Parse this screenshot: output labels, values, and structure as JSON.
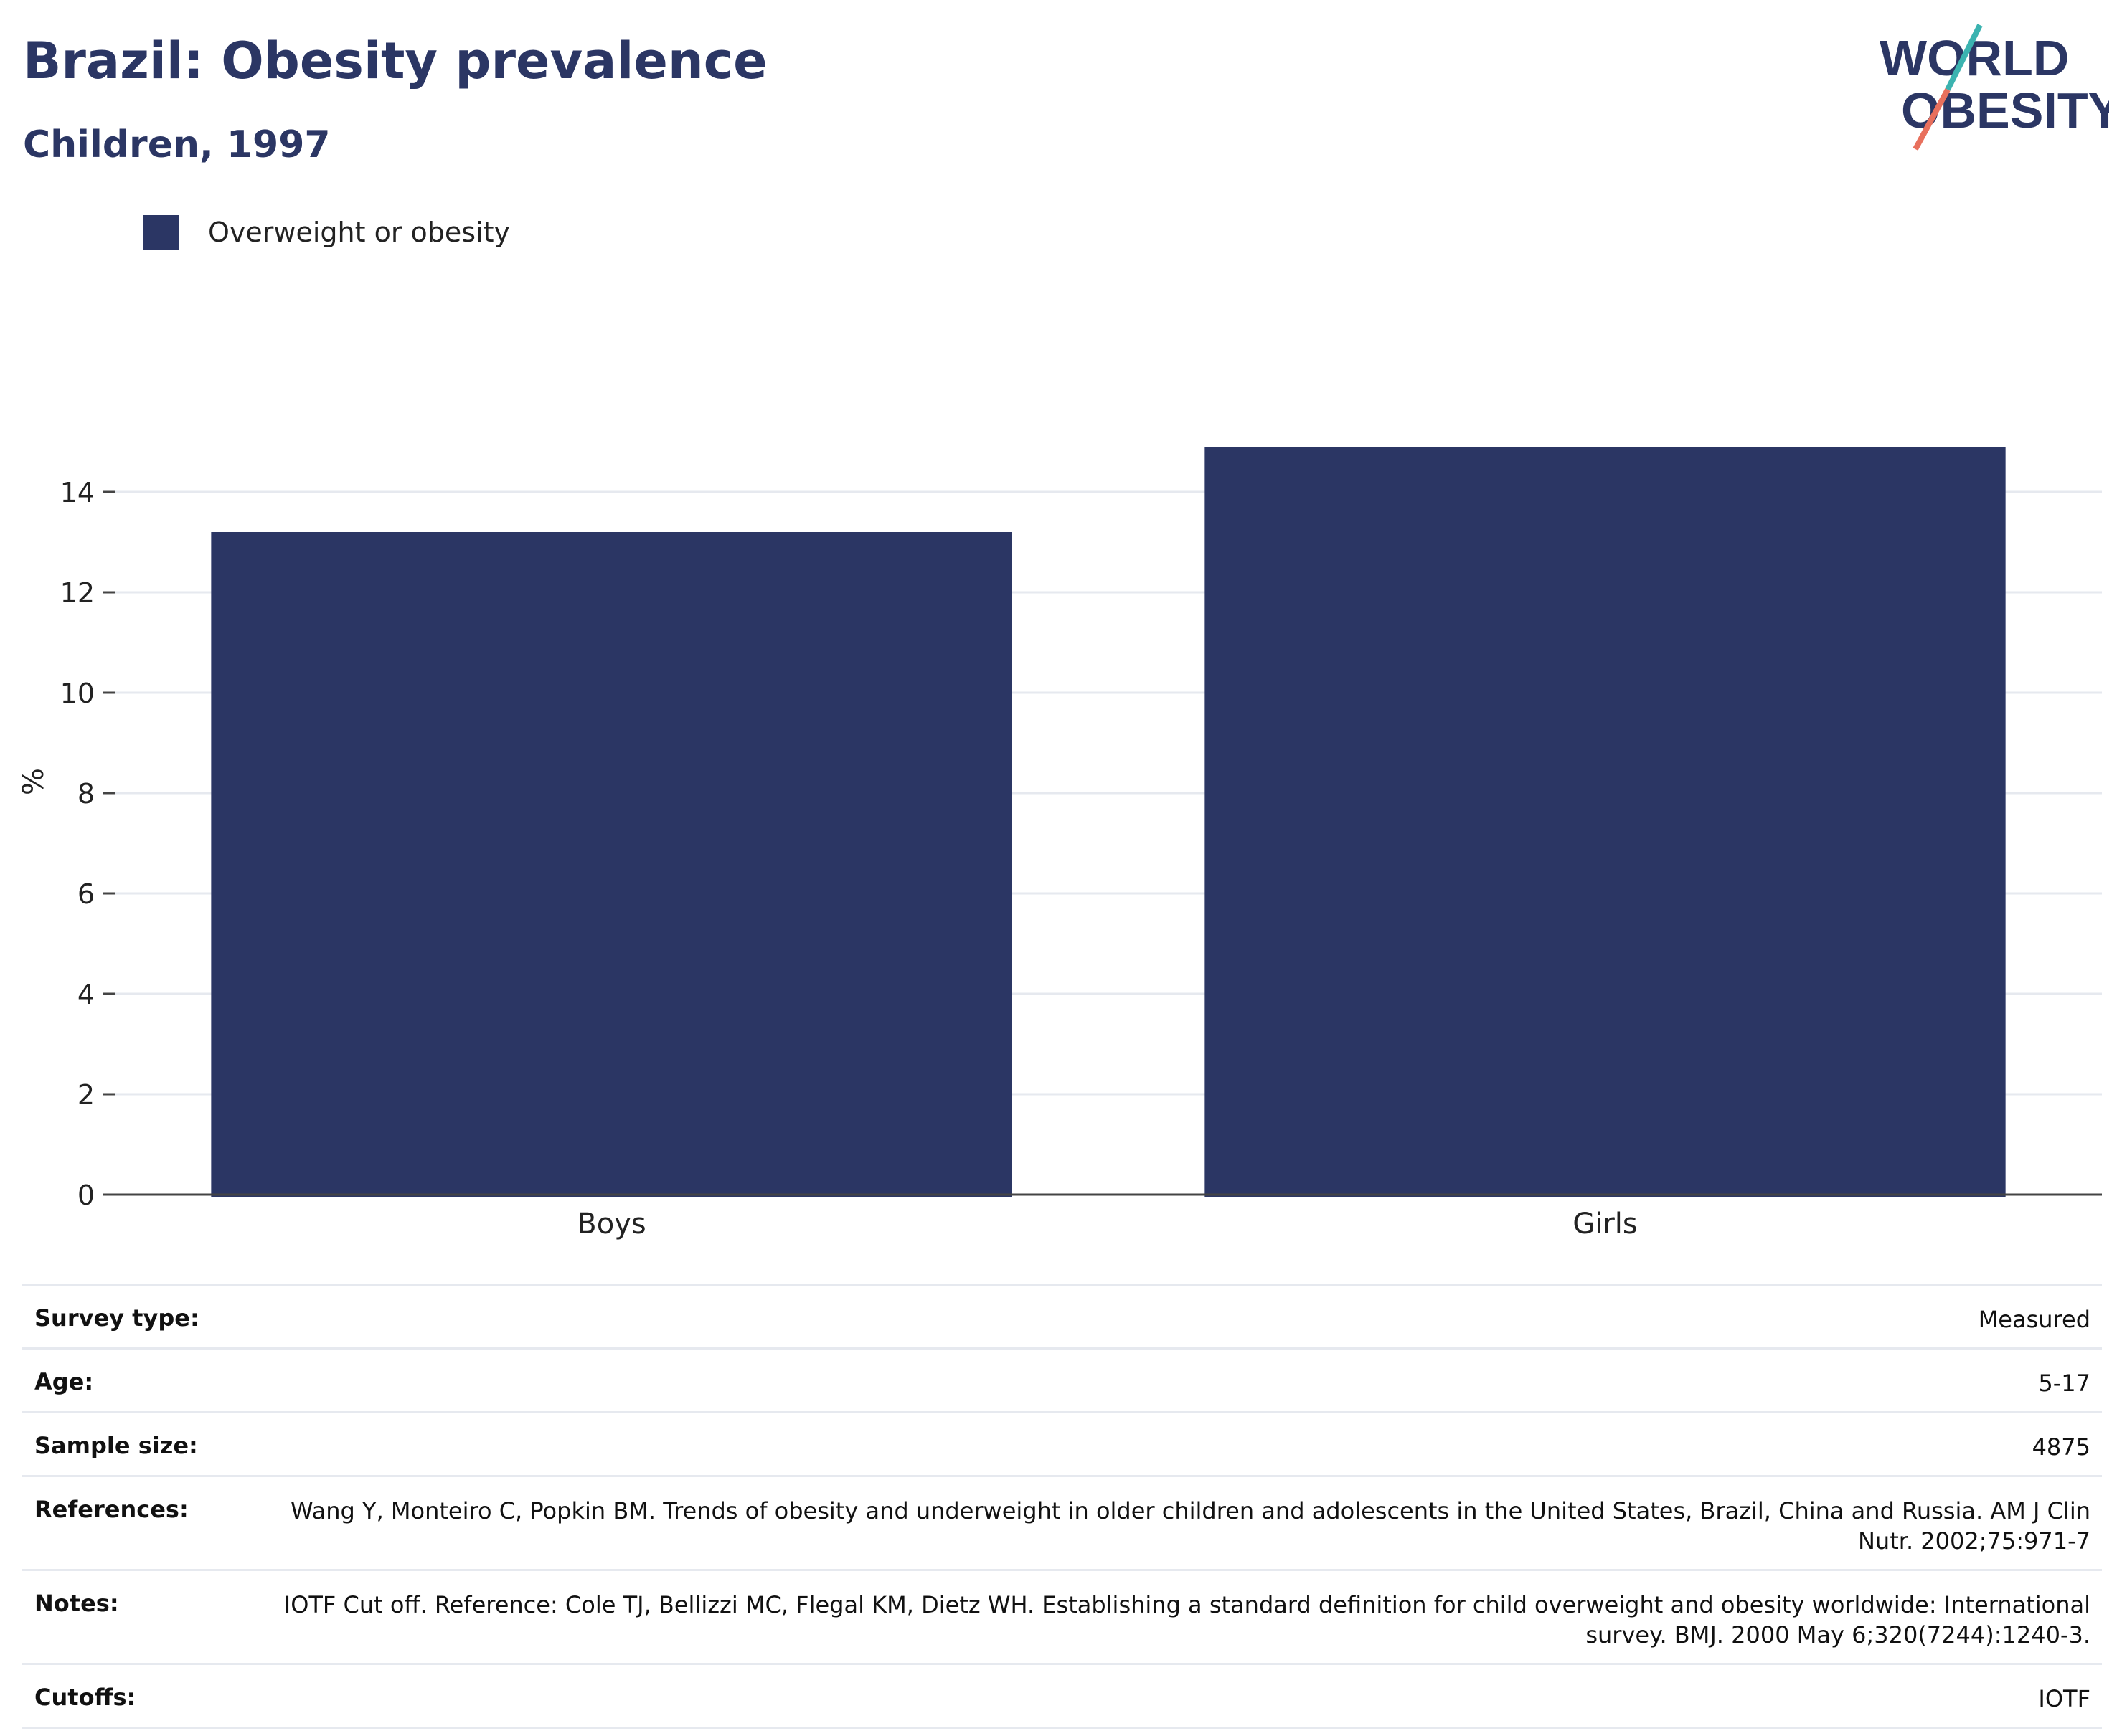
{
  "title": "Brazil: Obesity prevalence",
  "subtitle": "Children, 1997",
  "logo": {
    "line1": "WORLD",
    "line2": "OBESITY",
    "accent_teal": "#3bb3b0",
    "accent_coral": "#e8705d"
  },
  "colors": {
    "bar": "#2b3664",
    "text_dark": "#2b3664",
    "grid": "#e6e9ef",
    "axis": "#444444"
  },
  "chart_data": {
    "type": "bar",
    "categories": [
      "Boys",
      "Girls"
    ],
    "series": [
      {
        "name": "Overweight or obesity",
        "values": [
          13.2,
          14.9
        ]
      }
    ],
    "ylabel": "%",
    "xlabel": "",
    "ylim": [
      0,
      16
    ],
    "yticks": [
      0,
      2,
      4,
      6,
      8,
      10,
      12,
      14
    ],
    "grid": true,
    "legend": "top-left"
  },
  "details": [
    {
      "key": "Survey type:",
      "value": "Measured"
    },
    {
      "key": "Age:",
      "value": "5-17"
    },
    {
      "key": "Sample size:",
      "value": "4875"
    },
    {
      "key": "References:",
      "value": "Wang Y, Monteiro C, Popkin BM. Trends of obesity and underweight in older children and adolescents in the United States, Brazil, China and Russia. AM J Clin Nutr. 2002;75:971-7"
    },
    {
      "key": "Notes:",
      "value": "IOTF Cut off. Reference: Cole TJ, Bellizzi MC, Flegal KM, Dietz WH. Establishing a standard definition for child overweight and obesity worldwide: International survey. BMJ. 2000 May 6;320(7244):1240-3."
    },
    {
      "key": "Cutoffs:",
      "value": "IOTF"
    }
  ]
}
